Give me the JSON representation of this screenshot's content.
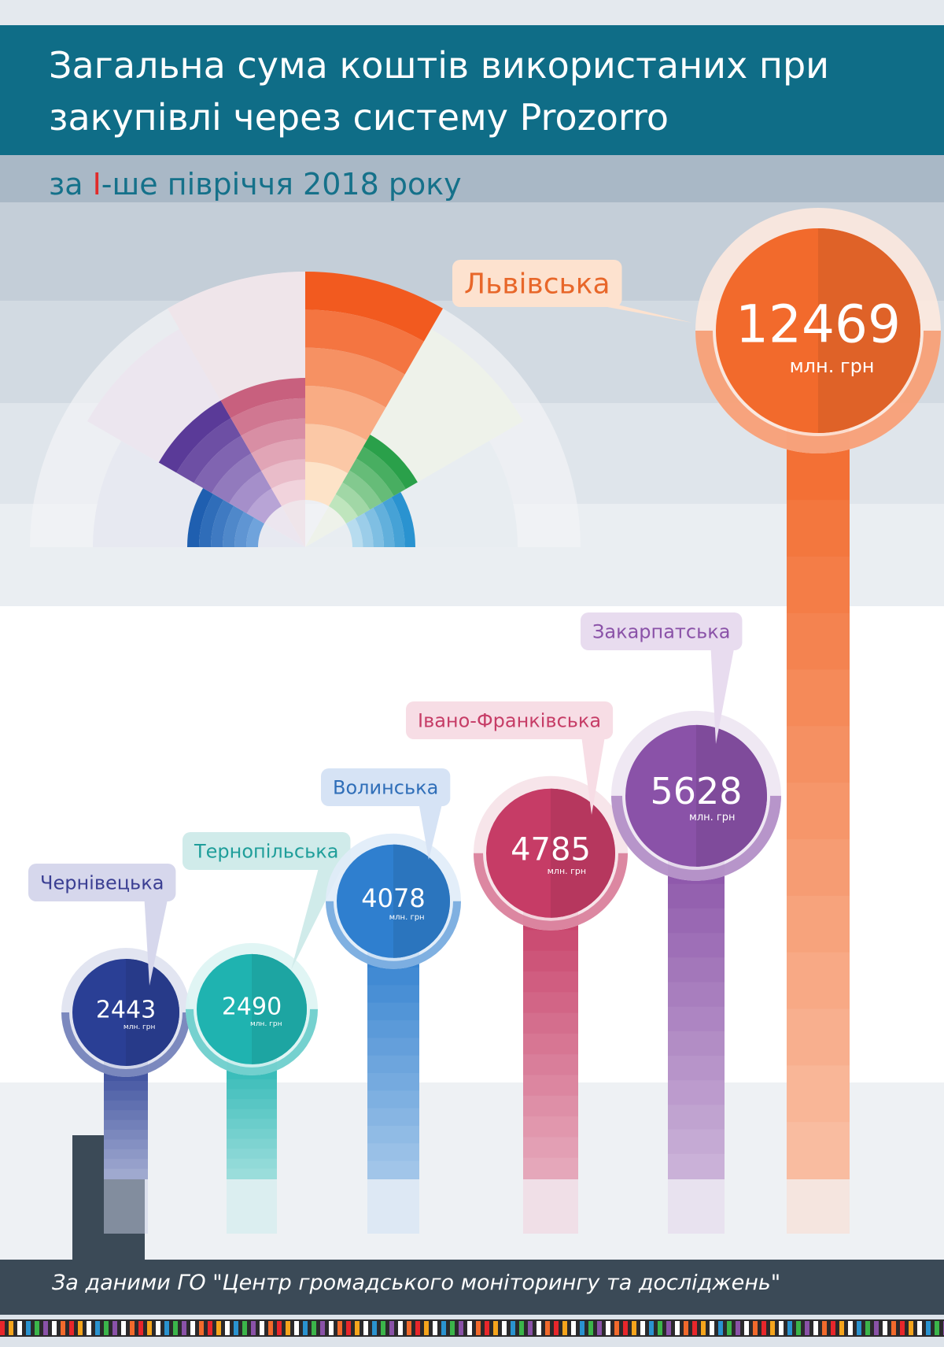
{
  "title": "Загальна сума коштів використаних при закупівлі через систему Prozorro",
  "subtitle_prefix": "за ",
  "subtitle_accent": "І",
  "subtitle_suffix": "-ше півріччя 2018 року",
  "footer": "За даними ГО \"Центр громадського моніторингу та досліджень\"",
  "colors": {
    "title_band": "#0f6d87",
    "lviv": "#f26a2c",
    "zakarpatska": "#8a52a8",
    "ivano_frankivska": "#c63c66",
    "volynska": "#2f7fcf",
    "ternopilska": "#1fb3b0",
    "chernivetska": "#2a3f95"
  },
  "chart_data": {
    "type": "bar",
    "unit": "млн. грн",
    "categories": [
      "Чернівецька",
      "Тернопільська",
      "Волинська",
      "Івано-Франківська",
      "Закарпатська",
      "Львівська"
    ],
    "values": [
      2443,
      2490,
      4078,
      4785,
      5628,
      12469
    ],
    "colors": [
      "#2a3f95",
      "#1fb3b0",
      "#2f7fcf",
      "#c63c66",
      "#8a52a8",
      "#f26a2c"
    ],
    "label_colors": [
      "#3b3f93",
      "#1f9e9a",
      "#2f6eb8",
      "#c63c66",
      "#8a52a8",
      "#e8672a"
    ]
  }
}
